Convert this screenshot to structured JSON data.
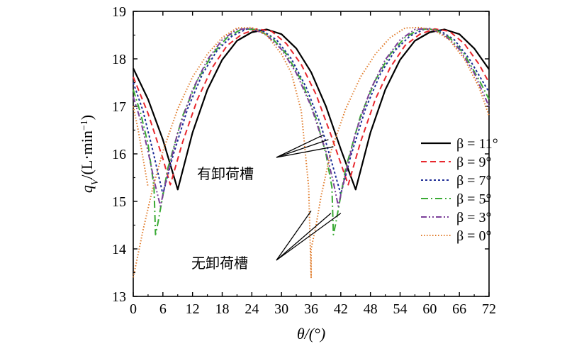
{
  "chart_data": {
    "type": "line",
    "xlabel": "θ/(°)",
    "ylabel": "qV/(L·min⁻¹)",
    "ylabel_parts": {
      "q": "q",
      "sub": "V",
      "unit_open": "/(L·min",
      "sup": "−1",
      "unit_close": ")"
    },
    "xlim": [
      0,
      72
    ],
    "ylim": [
      13,
      19
    ],
    "x_ticks": [
      0,
      6,
      12,
      18,
      24,
      30,
      36,
      42,
      48,
      54,
      60,
      66,
      72
    ],
    "y_ticks": [
      13,
      14,
      15,
      16,
      17,
      18,
      19
    ],
    "grid": false,
    "legend_position": "right",
    "annotations": [
      {
        "text": "有卸荷槽",
        "targets": [
          [
            38.5,
            16.4
          ],
          [
            39.5,
            16.3
          ],
          [
            40.5,
            16.15
          ]
        ]
      },
      {
        "text": "无卸荷槽",
        "targets": [
          [
            36,
            14.8
          ],
          [
            40,
            14.75
          ],
          [
            42,
            14.75
          ]
        ]
      }
    ],
    "series": [
      {
        "name": "β = 11°",
        "beta": 11,
        "color": "#000000",
        "dash": "",
        "width": 2.2,
        "points": [
          [
            0,
            17.8
          ],
          [
            3,
            17.15
          ],
          [
            6,
            16.3
          ],
          [
            9,
            15.25
          ],
          [
            12,
            16.45
          ],
          [
            15,
            17.35
          ],
          [
            18,
            17.98
          ],
          [
            21,
            18.38
          ],
          [
            24,
            18.56
          ],
          [
            27,
            18.62
          ],
          [
            30,
            18.52
          ],
          [
            33,
            18.22
          ],
          [
            36,
            17.72
          ],
          [
            39,
            17.0
          ],
          [
            42,
            16.1
          ],
          [
            45,
            15.25
          ],
          [
            48,
            16.45
          ],
          [
            51,
            17.35
          ],
          [
            54,
            17.98
          ],
          [
            57,
            18.38
          ],
          [
            60,
            18.56
          ],
          [
            63,
            18.62
          ],
          [
            66,
            18.52
          ],
          [
            69,
            18.22
          ],
          [
            72,
            17.78
          ]
        ]
      },
      {
        "name": "β = 9°",
        "beta": 9,
        "color": "#e8282e",
        "dash": "8 5",
        "width": 2,
        "points": [
          [
            0,
            17.62
          ],
          [
            3,
            16.85
          ],
          [
            6,
            15.9
          ],
          [
            7.5,
            15.35
          ],
          [
            10,
            16.25
          ],
          [
            13,
            17.15
          ],
          [
            16,
            17.82
          ],
          [
            19,
            18.28
          ],
          [
            22,
            18.52
          ],
          [
            25,
            18.63
          ],
          [
            28,
            18.58
          ],
          [
            31,
            18.32
          ],
          [
            34,
            17.88
          ],
          [
            37,
            17.25
          ],
          [
            40,
            16.4
          ],
          [
            43.5,
            15.35
          ],
          [
            46,
            16.25
          ],
          [
            49,
            17.15
          ],
          [
            52,
            17.82
          ],
          [
            55,
            18.28
          ],
          [
            58,
            18.52
          ],
          [
            61,
            18.63
          ],
          [
            64,
            18.58
          ],
          [
            67,
            18.32
          ],
          [
            70,
            17.88
          ],
          [
            72,
            17.5
          ]
        ]
      },
      {
        "name": "β = 7°",
        "beta": 7,
        "color": "#1e2d96",
        "dash": "3 3",
        "width": 2,
        "points": [
          [
            0,
            17.5
          ],
          [
            2,
            16.9
          ],
          [
            4,
            16.05
          ],
          [
            6,
            15.15
          ],
          [
            8,
            15.95
          ],
          [
            11,
            16.95
          ],
          [
            14,
            17.68
          ],
          [
            17,
            18.18
          ],
          [
            20,
            18.48
          ],
          [
            23,
            18.63
          ],
          [
            26,
            18.6
          ],
          [
            29,
            18.4
          ],
          [
            32,
            18.0
          ],
          [
            35,
            17.4
          ],
          [
            38,
            16.6
          ],
          [
            40.5,
            15.7
          ],
          [
            42,
            15.15
          ],
          [
            44,
            15.95
          ],
          [
            47,
            16.95
          ],
          [
            50,
            17.68
          ],
          [
            53,
            18.18
          ],
          [
            56,
            18.48
          ],
          [
            59,
            18.63
          ],
          [
            62,
            18.6
          ],
          [
            65,
            18.4
          ],
          [
            68,
            18.0
          ],
          [
            72,
            17.3
          ]
        ]
      },
      {
        "name": "β = 5°",
        "beta": 5,
        "color": "#3aaa35",
        "dash": "10 4 2 4",
        "width": 2,
        "points": [
          [
            0,
            17.35
          ],
          [
            1.5,
            16.85
          ],
          [
            3,
            16.2
          ],
          [
            4.2,
            15.3
          ],
          [
            4.5,
            14.3
          ],
          [
            5,
            14.55
          ],
          [
            7,
            15.7
          ],
          [
            10,
            16.8
          ],
          [
            13,
            17.55
          ],
          [
            16,
            18.1
          ],
          [
            19,
            18.45
          ],
          [
            22,
            18.63
          ],
          [
            25,
            18.62
          ],
          [
            28,
            18.45
          ],
          [
            31,
            18.1
          ],
          [
            34,
            17.55
          ],
          [
            37,
            16.75
          ],
          [
            39,
            16.0
          ],
          [
            40.2,
            15.3
          ],
          [
            40.5,
            14.3
          ],
          [
            41,
            14.55
          ],
          [
            43,
            15.7
          ],
          [
            46,
            16.8
          ],
          [
            49,
            17.55
          ],
          [
            52,
            18.1
          ],
          [
            55,
            18.45
          ],
          [
            58,
            18.63
          ],
          [
            61,
            18.62
          ],
          [
            64,
            18.45
          ],
          [
            67,
            18.1
          ],
          [
            70,
            17.55
          ],
          [
            72,
            17.15
          ]
        ]
      },
      {
        "name": "β = 3°",
        "beta": 3,
        "color": "#7b3f99",
        "dash": "8 3 2 3 2 3",
        "width": 2,
        "points": [
          [
            0,
            17.2
          ],
          [
            1.5,
            16.7
          ],
          [
            3,
            16.05
          ],
          [
            4.2,
            15.45
          ],
          [
            5.5,
            14.9
          ],
          [
            7,
            15.6
          ],
          [
            9,
            16.45
          ],
          [
            12,
            17.35
          ],
          [
            15,
            17.98
          ],
          [
            18,
            18.4
          ],
          [
            21,
            18.62
          ],
          [
            24,
            18.64
          ],
          [
            27,
            18.5
          ],
          [
            30,
            18.2
          ],
          [
            33,
            17.7
          ],
          [
            36,
            17.0
          ],
          [
            39,
            16.05
          ],
          [
            40.5,
            15.4
          ],
          [
            41.5,
            14.9
          ],
          [
            43,
            15.6
          ],
          [
            45,
            16.45
          ],
          [
            48,
            17.35
          ],
          [
            51,
            17.98
          ],
          [
            54,
            18.4
          ],
          [
            57,
            18.62
          ],
          [
            60,
            18.64
          ],
          [
            63,
            18.5
          ],
          [
            66,
            18.2
          ],
          [
            69,
            17.7
          ],
          [
            72,
            17.0
          ]
        ]
      },
      {
        "name": "β = 0°",
        "beta": 0,
        "color": "#e07b2a",
        "dash": "1.5 2.5",
        "width": 2,
        "points": [
          [
            0,
            17.0
          ],
          [
            1,
            16.5
          ],
          [
            2,
            15.9
          ],
          [
            3,
            15.3
          ],
          [
            0,
            13.4
          ],
          [
            1,
            13.9
          ],
          [
            2,
            14.4
          ],
          [
            4,
            15.3
          ],
          [
            6,
            16.05
          ],
          [
            9,
            16.95
          ],
          [
            12,
            17.62
          ],
          [
            15,
            18.1
          ],
          [
            18,
            18.45
          ],
          [
            21,
            18.65
          ],
          [
            24,
            18.66
          ],
          [
            27,
            18.5
          ],
          [
            30,
            18.1
          ],
          [
            32,
            17.7
          ],
          [
            34,
            16.9
          ],
          [
            35.5,
            15.3
          ],
          [
            36,
            13.4
          ],
          [
            36,
            14.0
          ],
          [
            37,
            14.5
          ],
          [
            38,
            15.1
          ],
          [
            40,
            16.05
          ],
          [
            43,
            16.95
          ],
          [
            46,
            17.62
          ],
          [
            49,
            18.1
          ],
          [
            52,
            18.45
          ],
          [
            55,
            18.65
          ],
          [
            58,
            18.66
          ],
          [
            61,
            18.6
          ],
          [
            64,
            18.4
          ],
          [
            67,
            18.0
          ],
          [
            70,
            17.4
          ],
          [
            72,
            16.8
          ]
        ]
      }
    ]
  }
}
